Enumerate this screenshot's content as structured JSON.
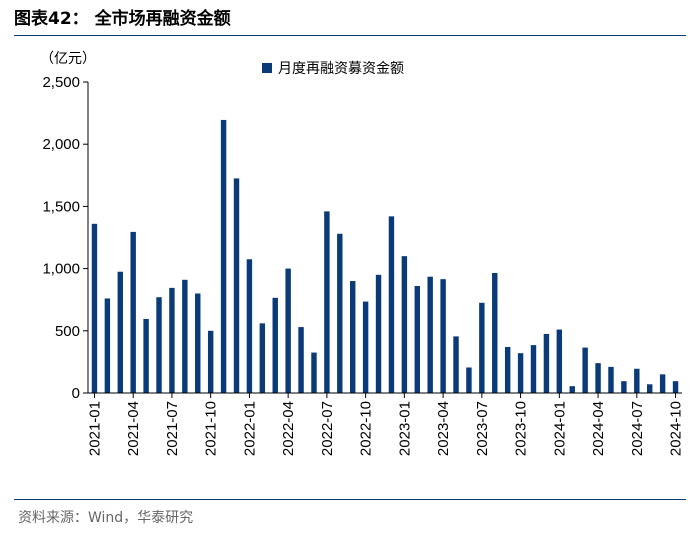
{
  "header": {
    "title": "图表42：  全市场再融资金额"
  },
  "footer": {
    "source": "资料来源：Wind，华泰研究"
  },
  "colors": {
    "bar": "#0b3a78",
    "rule": "#0b3a78",
    "axis": "#000000"
  },
  "chart_data": {
    "type": "bar",
    "title": "全市场再融资金额",
    "ylabel": "（亿元）",
    "xlabel": "",
    "ylim": [
      0,
      2500
    ],
    "yticks": [
      0,
      500,
      1000,
      1500,
      2000,
      2500
    ],
    "ytick_labels": [
      "0",
      "500",
      "1,000",
      "1,500",
      "2,000",
      "2,500"
    ],
    "grid": false,
    "legend_position": "top-center",
    "x_tick_labels": [
      "2021-01",
      "2021-04",
      "2021-07",
      "2021-10",
      "2022-01",
      "2022-04",
      "2022-07",
      "2022-10",
      "2023-01",
      "2023-04",
      "2023-07",
      "2023-10",
      "2024-01",
      "2024-04",
      "2024-07",
      "2024-10"
    ],
    "categories": [
      "2021-01",
      "2021-02",
      "2021-03",
      "2021-04",
      "2021-05",
      "2021-06",
      "2021-07",
      "2021-08",
      "2021-09",
      "2021-10",
      "2021-11",
      "2021-12",
      "2022-01",
      "2022-02",
      "2022-03",
      "2022-04",
      "2022-05",
      "2022-06",
      "2022-07",
      "2022-08",
      "2022-09",
      "2022-10",
      "2022-11",
      "2022-12",
      "2023-01",
      "2023-02",
      "2023-03",
      "2023-04",
      "2023-05",
      "2023-06",
      "2023-07",
      "2023-08",
      "2023-09",
      "2023-10",
      "2023-11",
      "2023-12",
      "2024-01",
      "2024-02",
      "2024-03",
      "2024-04",
      "2024-05",
      "2024-06",
      "2024-07",
      "2024-08",
      "2024-09",
      "2024-10"
    ],
    "series": [
      {
        "name": "月度再融资募资金额",
        "values": [
          1360,
          760,
          975,
          1295,
          595,
          770,
          845,
          910,
          800,
          500,
          2195,
          1725,
          1075,
          560,
          765,
          1000,
          530,
          325,
          1460,
          1280,
          900,
          735,
          950,
          1420,
          1100,
          860,
          935,
          915,
          455,
          205,
          725,
          965,
          370,
          320,
          385,
          475,
          510,
          55,
          365,
          240,
          210,
          95,
          195,
          70,
          150,
          95
        ]
      }
    ]
  }
}
